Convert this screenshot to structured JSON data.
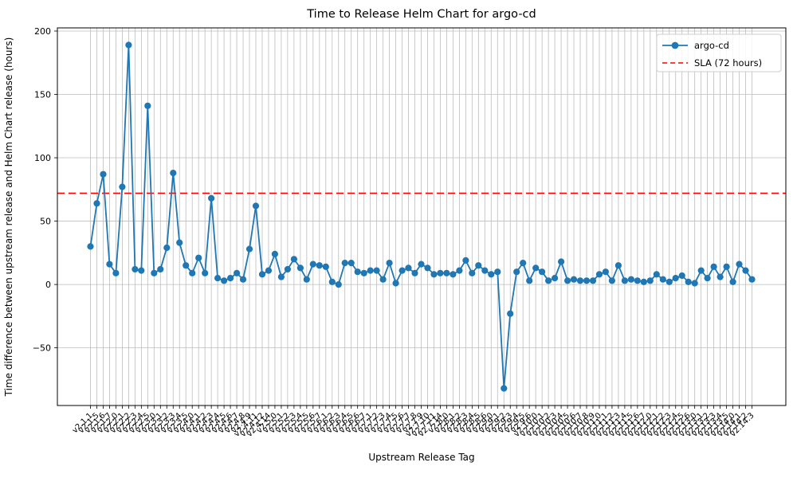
{
  "figure": {
    "title": "Time to Release Helm Chart for argo-cd",
    "xlabel": "Upstream Release Tag",
    "ylabel": "Time difference between upstream release and Helm Chart release (hours)"
  },
  "legend": {
    "series_label": "argo-cd",
    "sla_label": "SLA (72 hours)"
  },
  "colors": {
    "series": "#1f77b4",
    "sla": "#ff0000",
    "grid": "#bdbdbd",
    "spine": "#000000"
  },
  "chart_data": {
    "type": "line",
    "title": "Time to Release Helm Chart for argo-cd",
    "xlabel": "Upstream Release Tag",
    "ylabel": "Time difference between upstream release and Helm Chart release (hours)",
    "grid": true,
    "legend_position": "upper right",
    "ylim": [
      -95.5,
      202.5
    ],
    "yticks": [
      200,
      150,
      100,
      50,
      0,
      -50
    ],
    "sla_line": {
      "label": "SLA (72 hours)",
      "value": 72,
      "color": "#ff0000",
      "style": "dashed"
    },
    "categories": [
      "v2.1.1",
      "v2.1.5",
      "v2.1.6",
      "v2.1.7",
      "v2.2.0",
      "v2.2.1",
      "v2.2.2",
      "v2.2.3",
      "v2.2.4",
      "v2.2.5",
      "v2.3.0",
      "v2.3.1",
      "v2.3.2",
      "v2.3.3",
      "v2.3.4",
      "v2.3.5",
      "v2.4.0",
      "v2.4.1",
      "v2.4.2",
      "v2.4.3",
      "v2.4.4",
      "v2.4.5",
      "v2.4.6",
      "v2.4.7",
      "v2.4.8",
      "v2.4.9",
      "v2.4.11",
      "v2.4.12",
      "v2.4.14",
      "v2.5.0",
      "v2.5.1",
      "v2.5.2",
      "v2.5.3",
      "v2.5.4",
      "v2.5.5",
      "v2.5.6",
      "v2.5.7",
      "v2.6.1",
      "v2.6.2",
      "v2.6.3",
      "v2.6.4",
      "v2.6.5",
      "v2.6.6",
      "v2.6.7",
      "v2.7.1",
      "v2.7.2",
      "v2.7.3",
      "v2.7.4",
      "v2.7.5",
      "v2.7.6",
      "v2.7.7",
      "v2.7.8",
      "v2.7.9",
      "v2.7.10",
      "v2.7.11",
      "v2.7.14",
      "v2.8.0",
      "v2.8.1",
      "v2.8.2",
      "v2.8.3",
      "v2.8.4",
      "v2.8.5",
      "v2.8.6",
      "v2.9.0",
      "v2.9.1",
      "v2.9.2",
      "v2.9.3",
      "v2.9.4",
      "v2.9.5",
      "v2.9.6",
      "v2.10.0",
      "v2.10.1",
      "v2.10.2",
      "v2.10.3",
      "v2.10.4",
      "v2.10.5",
      "v2.10.6",
      "v2.10.7",
      "v2.10.8",
      "v2.10.9",
      "v2.11.0",
      "v2.11.1",
      "v2.11.2",
      "v2.11.3",
      "v2.11.4",
      "v2.11.5",
      "v2.11.6",
      "v2.11.7",
      "v2.12.0",
      "v2.12.1",
      "v2.12.2",
      "v2.12.3",
      "v2.12.4",
      "v2.12.5",
      "v2.12.6",
      "v2.13.0",
      "v2.13.1",
      "v2.13.2",
      "v2.13.3",
      "v2.13.4",
      "v2.13.5",
      "v2.14.0",
      "v2.14.1",
      "v2.14.2",
      "v2.14.3"
    ],
    "series": [
      {
        "name": "argo-cd",
        "color": "#1f77b4",
        "marker": "circle",
        "values": [
          30,
          64,
          87,
          16,
          9,
          77,
          189,
          12,
          11,
          141,
          9,
          12,
          29,
          88,
          33,
          15,
          9,
          21,
          9,
          68,
          5,
          3,
          5,
          9,
          4,
          28,
          62,
          8,
          11,
          24,
          6,
          12,
          20,
          13,
          4,
          16,
          15,
          14,
          2,
          0,
          17,
          17,
          10,
          9,
          11,
          11,
          4,
          17,
          1,
          11,
          13,
          9,
          16,
          13,
          8,
          9,
          9,
          8,
          11,
          19,
          9,
          15,
          11,
          8,
          10,
          -82,
          -23,
          10,
          17,
          3,
          13,
          10,
          3,
          5,
          18,
          3,
          4,
          3,
          3,
          3,
          8,
          10,
          3,
          15,
          3,
          4,
          3,
          2,
          3,
          8,
          4,
          2,
          5,
          7,
          2,
          1,
          11,
          5,
          14,
          6,
          14,
          2,
          16,
          11,
          4
        ]
      }
    ]
  }
}
